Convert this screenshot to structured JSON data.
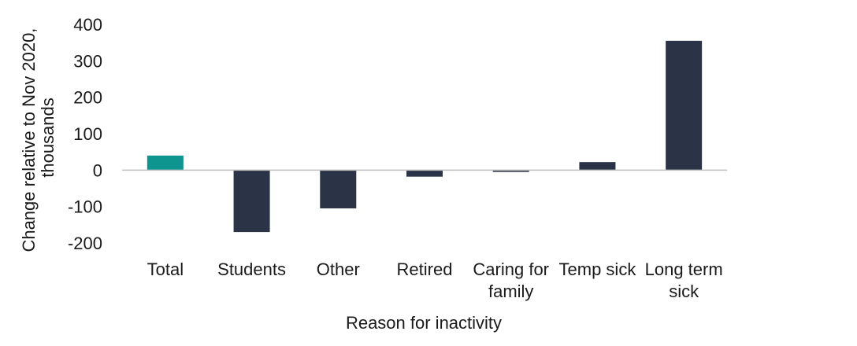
{
  "chart_data": {
    "type": "bar",
    "title": "",
    "xlabel": "Reason for inactivity",
    "ylabel_lines": [
      "Change relative to Nov 2020,",
      "thousands"
    ],
    "categories": [
      [
        "Total"
      ],
      [
        "Students"
      ],
      [
        "Other"
      ],
      [
        "Retired"
      ],
      [
        "Caring for",
        "family"
      ],
      [
        "Temp sick"
      ],
      [
        "Long term",
        "sick"
      ]
    ],
    "values": [
      40,
      -170,
      -105,
      -18,
      -5,
      22,
      355
    ],
    "bar_colors": [
      "#0f9590",
      "#2b3446",
      "#2b3446",
      "#2b3446",
      "#2b3446",
      "#2b3446",
      "#2b3446"
    ],
    "ylim": [
      -200,
      400
    ],
    "yticks": [
      400,
      300,
      200,
      100,
      0,
      -100,
      -200
    ],
    "grid": false,
    "legend": "none"
  }
}
